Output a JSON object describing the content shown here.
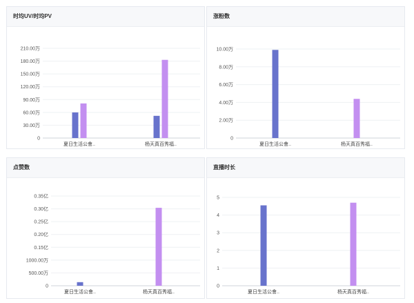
{
  "colors": {
    "series_a": "#6873cc",
    "series_b": "#c38ff0"
  },
  "chart_data": [
    {
      "type": "bar",
      "title": "时均UV/时均PV",
      "categories": [
        "夏日生活公會..",
        "杨天真百秀福.."
      ],
      "y_ticks": [
        "0",
        "30.00万",
        "60.00万",
        "90.00万",
        "120.00万",
        "150.00万",
        "180.00万",
        "210.00万"
      ],
      "ylim": [
        0,
        210
      ],
      "series": [
        {
          "values": [
            60,
            52
          ],
          "color": "#6873cc"
        },
        {
          "values": [
            81,
            183
          ],
          "color": "#c38ff0"
        }
      ]
    },
    {
      "type": "bar",
      "title": "涨粉数",
      "categories": [
        "夏日生活公會..",
        "杨天真百秀福.."
      ],
      "y_ticks": [
        "0",
        "2.00万",
        "4.00万",
        "6.00万",
        "8.00万",
        "10.00万"
      ],
      "ylim": [
        0,
        10
      ],
      "series": [
        {
          "values": [
            9.9,
            null
          ],
          "color": "#6873cc"
        },
        {
          "values": [
            null,
            4.4
          ],
          "color": "#c38ff0"
        }
      ]
    },
    {
      "type": "bar",
      "title": "点赞数",
      "categories": [
        "夏日生活公會..",
        "杨天真百秀福.."
      ],
      "y_ticks": [
        "0",
        "500.00万",
        "1000.00万",
        "0.15亿",
        "0.20亿",
        "0.25亿",
        "0.30亿",
        "0.35亿"
      ],
      "ylim": [
        0,
        3500
      ],
      "series": [
        {
          "values": [
            140,
            null
          ],
          "color": "#6873cc"
        },
        {
          "values": [
            null,
            3040
          ],
          "color": "#c38ff0"
        }
      ]
    },
    {
      "type": "bar",
      "title": "直播时长",
      "categories": [
        "夏日生活公會..",
        "杨天真百秀福.."
      ],
      "y_ticks": [
        "0",
        "1",
        "2",
        "3",
        "4",
        "5"
      ],
      "ylim": [
        0,
        5
      ],
      "series": [
        {
          "values": [
            4.55,
            null
          ],
          "color": "#6873cc"
        },
        {
          "values": [
            null,
            4.7
          ],
          "color": "#c38ff0"
        }
      ]
    }
  ]
}
